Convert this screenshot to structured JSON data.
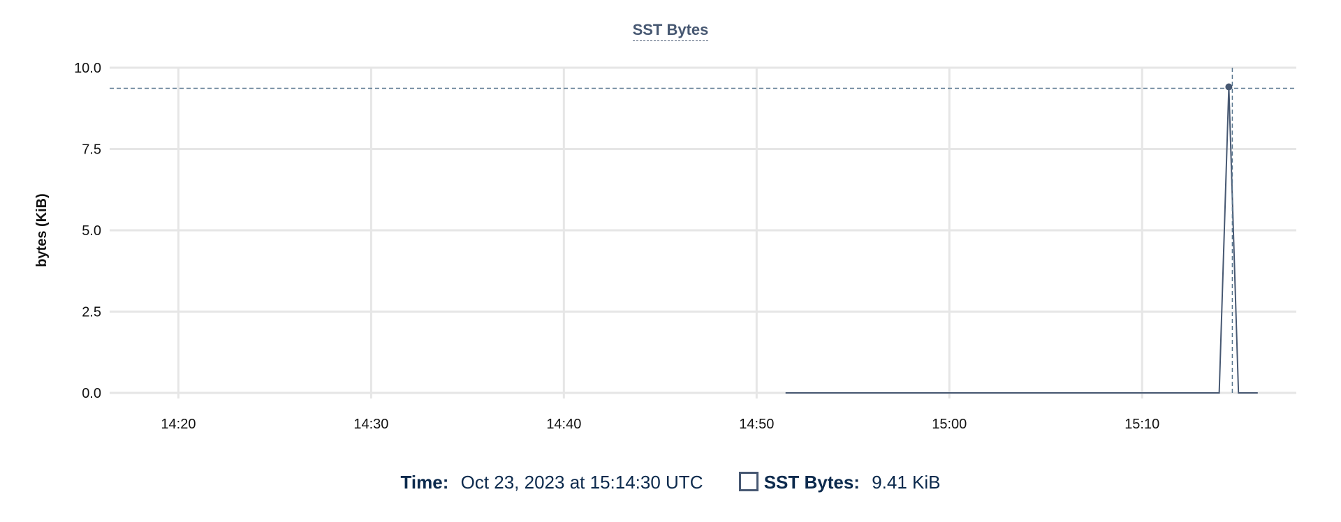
{
  "chart_data": {
    "type": "line",
    "title": "SST Bytes",
    "xlabel": "",
    "ylabel": "bytes (KiB)",
    "xlim": [
      "14:16:26",
      "15:18:00"
    ],
    "ylim": [
      0,
      10
    ],
    "x_ticks": [
      "14:20",
      "14:30",
      "14:40",
      "14:50",
      "15:00",
      "15:10"
    ],
    "y_ticks": [
      "0.0",
      "2.5",
      "5.0",
      "7.5",
      "10.0"
    ],
    "grid": true,
    "color": "#475872",
    "series": [
      {
        "name": "SST Bytes",
        "x": [
          "14:51:30",
          "15:14:00",
          "15:14:30",
          "15:15:00",
          "15:16:00"
        ],
        "values": [
          0,
          0,
          9.41,
          0,
          0
        ]
      }
    ],
    "hover": {
      "x": "15:14:30",
      "y": 9.41
    }
  },
  "legend": {
    "time_label": "Time:",
    "time_value": "Oct 23, 2023 at 15:14:30 UTC",
    "series_label": "SST Bytes:",
    "series_value": "9.41 KiB"
  }
}
